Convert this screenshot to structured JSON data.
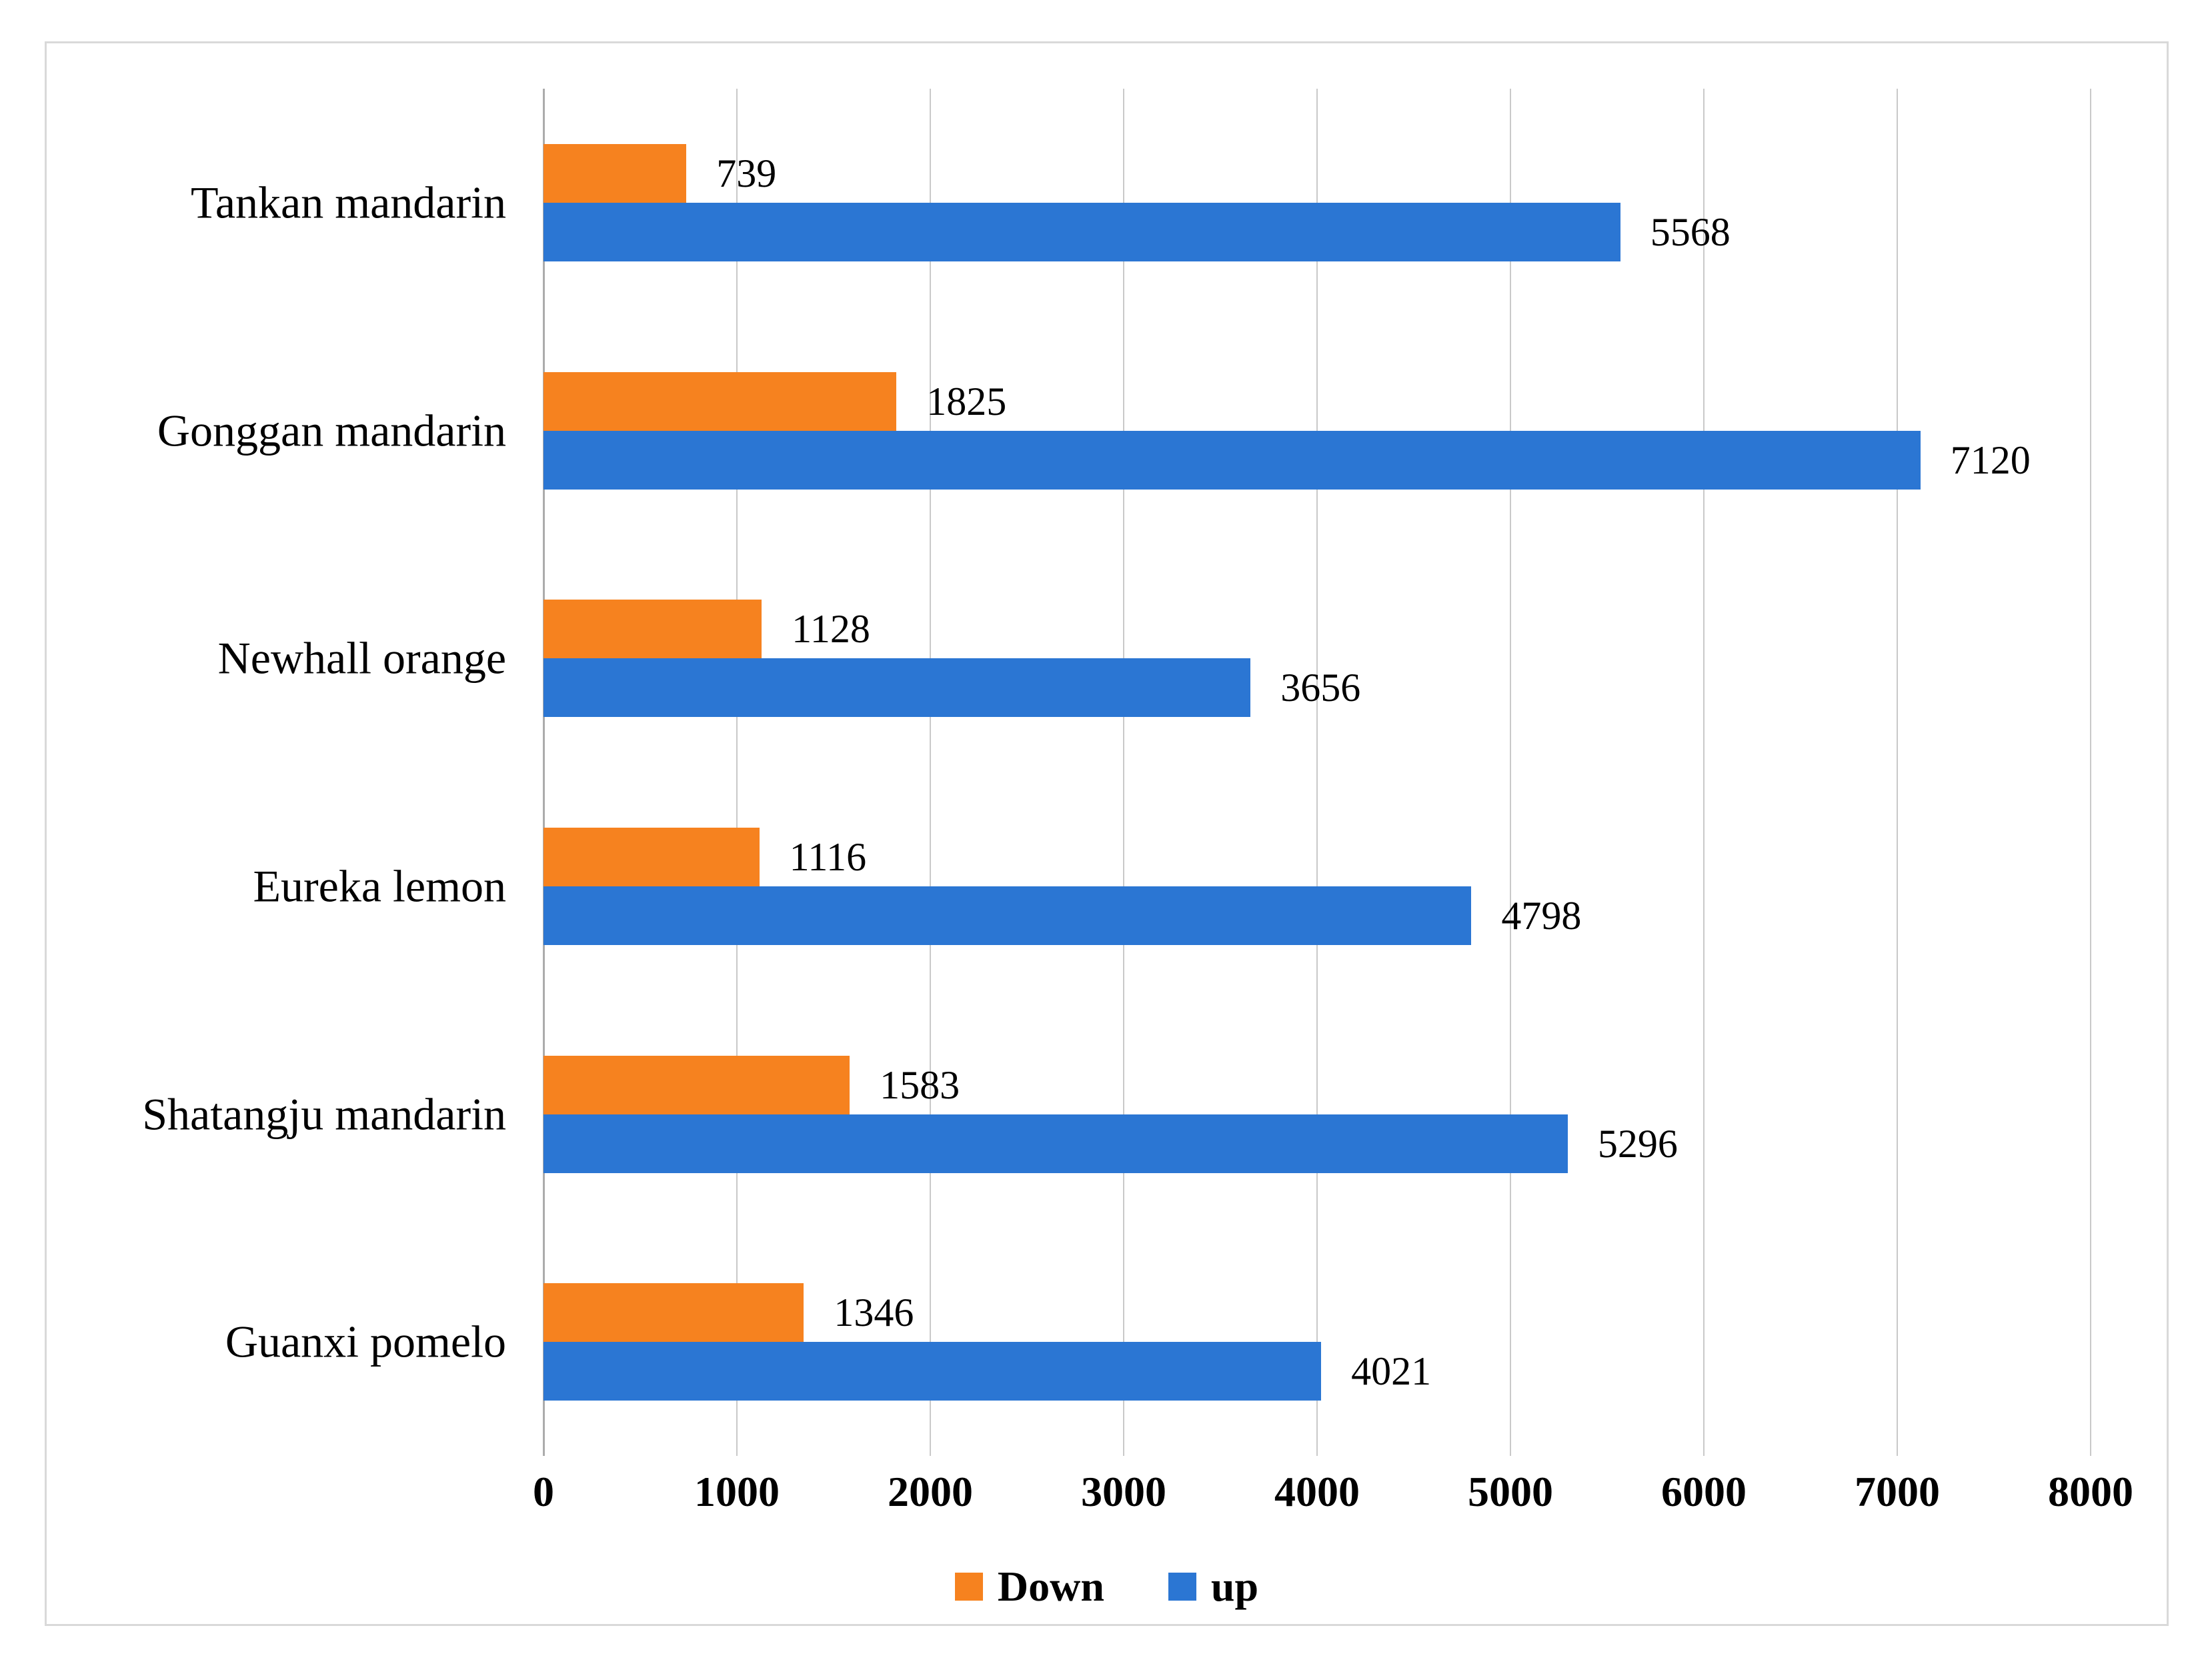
{
  "chart_data": {
    "type": "bar",
    "orientation": "horizontal",
    "title": "",
    "categories": [
      "Tankan mandarin",
      "Gonggan mandarin",
      "Newhall orange",
      "Eureka lemon",
      "Shatangju mandarin",
      "Guanxi pomelo"
    ],
    "series": [
      {
        "name": "Down",
        "color": "#F6821F",
        "values": [
          739,
          1825,
          1128,
          1116,
          1583,
          1346
        ]
      },
      {
        "name": "up",
        "color": "#2B76D3",
        "values": [
          5568,
          7120,
          3656,
          4798,
          5296,
          4021
        ]
      }
    ],
    "x_axis": {
      "min": 0,
      "max": 8000,
      "tick_interval": 1000,
      "tick_labels": [
        "0",
        "1000",
        "2000",
        "3000",
        "4000",
        "5000",
        "6000",
        "7000",
        "8000"
      ]
    },
    "grid": true,
    "data_labels": true,
    "legend_position": "bottom"
  },
  "style": {
    "frame_border_color": "#D9D9D9",
    "gridline_color": "#C9C9C9",
    "axis_line_color": "#ABABAB",
    "text_color": "#000000",
    "background_color": "#FFFFFF"
  }
}
